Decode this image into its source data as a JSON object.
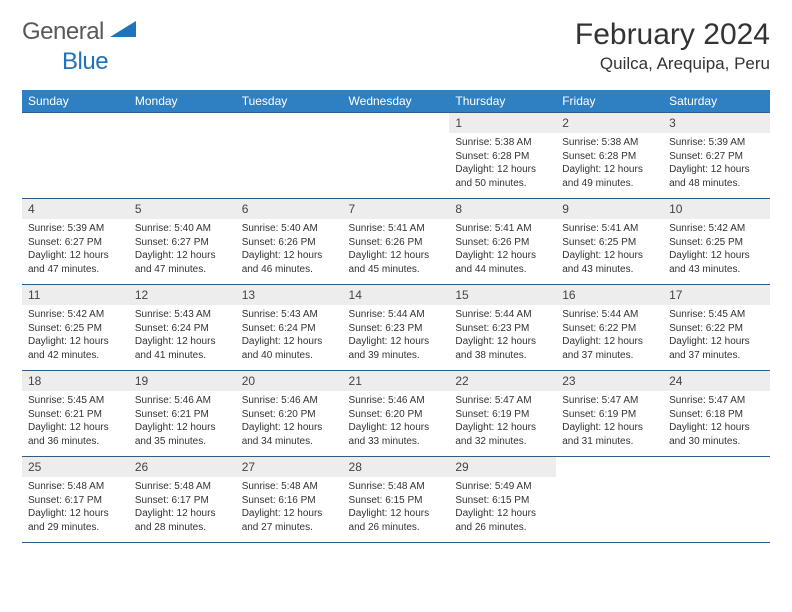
{
  "brand": {
    "part1": "General",
    "part2": "Blue"
  },
  "title": "February 2024",
  "location": "Quilca, Arequipa, Peru",
  "weekdays": [
    "Sunday",
    "Monday",
    "Tuesday",
    "Wednesday",
    "Thursday",
    "Friday",
    "Saturday"
  ],
  "colors": {
    "header_bg": "#2f80c2",
    "cell_border": "#2a5d8a",
    "daynum_bg": "#ededed",
    "logo_blue": "#2073b8",
    "text": "#333333"
  },
  "layout": {
    "first_weekday_index": 4,
    "days_in_month": 29
  },
  "days": [
    {
      "n": 1,
      "sr": "5:38 AM",
      "ss": "6:28 PM",
      "dl": "12 hours and 50 minutes."
    },
    {
      "n": 2,
      "sr": "5:38 AM",
      "ss": "6:28 PM",
      "dl": "12 hours and 49 minutes."
    },
    {
      "n": 3,
      "sr": "5:39 AM",
      "ss": "6:27 PM",
      "dl": "12 hours and 48 minutes."
    },
    {
      "n": 4,
      "sr": "5:39 AM",
      "ss": "6:27 PM",
      "dl": "12 hours and 47 minutes."
    },
    {
      "n": 5,
      "sr": "5:40 AM",
      "ss": "6:27 PM",
      "dl": "12 hours and 47 minutes."
    },
    {
      "n": 6,
      "sr": "5:40 AM",
      "ss": "6:26 PM",
      "dl": "12 hours and 46 minutes."
    },
    {
      "n": 7,
      "sr": "5:41 AM",
      "ss": "6:26 PM",
      "dl": "12 hours and 45 minutes."
    },
    {
      "n": 8,
      "sr": "5:41 AM",
      "ss": "6:26 PM",
      "dl": "12 hours and 44 minutes."
    },
    {
      "n": 9,
      "sr": "5:41 AM",
      "ss": "6:25 PM",
      "dl": "12 hours and 43 minutes."
    },
    {
      "n": 10,
      "sr": "5:42 AM",
      "ss": "6:25 PM",
      "dl": "12 hours and 43 minutes."
    },
    {
      "n": 11,
      "sr": "5:42 AM",
      "ss": "6:25 PM",
      "dl": "12 hours and 42 minutes."
    },
    {
      "n": 12,
      "sr": "5:43 AM",
      "ss": "6:24 PM",
      "dl": "12 hours and 41 minutes."
    },
    {
      "n": 13,
      "sr": "5:43 AM",
      "ss": "6:24 PM",
      "dl": "12 hours and 40 minutes."
    },
    {
      "n": 14,
      "sr": "5:44 AM",
      "ss": "6:23 PM",
      "dl": "12 hours and 39 minutes."
    },
    {
      "n": 15,
      "sr": "5:44 AM",
      "ss": "6:23 PM",
      "dl": "12 hours and 38 minutes."
    },
    {
      "n": 16,
      "sr": "5:44 AM",
      "ss": "6:22 PM",
      "dl": "12 hours and 37 minutes."
    },
    {
      "n": 17,
      "sr": "5:45 AM",
      "ss": "6:22 PM",
      "dl": "12 hours and 37 minutes."
    },
    {
      "n": 18,
      "sr": "5:45 AM",
      "ss": "6:21 PM",
      "dl": "12 hours and 36 minutes."
    },
    {
      "n": 19,
      "sr": "5:46 AM",
      "ss": "6:21 PM",
      "dl": "12 hours and 35 minutes."
    },
    {
      "n": 20,
      "sr": "5:46 AM",
      "ss": "6:20 PM",
      "dl": "12 hours and 34 minutes."
    },
    {
      "n": 21,
      "sr": "5:46 AM",
      "ss": "6:20 PM",
      "dl": "12 hours and 33 minutes."
    },
    {
      "n": 22,
      "sr": "5:47 AM",
      "ss": "6:19 PM",
      "dl": "12 hours and 32 minutes."
    },
    {
      "n": 23,
      "sr": "5:47 AM",
      "ss": "6:19 PM",
      "dl": "12 hours and 31 minutes."
    },
    {
      "n": 24,
      "sr": "5:47 AM",
      "ss": "6:18 PM",
      "dl": "12 hours and 30 minutes."
    },
    {
      "n": 25,
      "sr": "5:48 AM",
      "ss": "6:17 PM",
      "dl": "12 hours and 29 minutes."
    },
    {
      "n": 26,
      "sr": "5:48 AM",
      "ss": "6:17 PM",
      "dl": "12 hours and 28 minutes."
    },
    {
      "n": 27,
      "sr": "5:48 AM",
      "ss": "6:16 PM",
      "dl": "12 hours and 27 minutes."
    },
    {
      "n": 28,
      "sr": "5:48 AM",
      "ss": "6:15 PM",
      "dl": "12 hours and 26 minutes."
    },
    {
      "n": 29,
      "sr": "5:49 AM",
      "ss": "6:15 PM",
      "dl": "12 hours and 26 minutes."
    }
  ],
  "labels": {
    "sunrise": "Sunrise:",
    "sunset": "Sunset:",
    "daylight": "Daylight:"
  }
}
